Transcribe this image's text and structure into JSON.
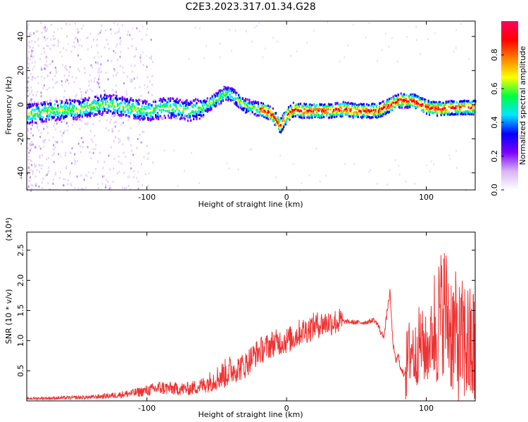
{
  "title": "C2E3.2023.317.01.34.G28",
  "chart_data": [
    {
      "type": "heatmap",
      "xlabel": "Height of straight line (km)",
      "ylabel": "Frequency (Hz)",
      "xlim": [
        -186,
        135
      ],
      "ylim": [
        -50,
        49
      ],
      "x_ticks": [
        -100,
        0,
        100
      ],
      "y_ticks": [
        -40,
        -20,
        0,
        20,
        40
      ],
      "colorbar": {
        "label": "Normalized spectral amplitude",
        "range": [
          0.0,
          1.0
        ],
        "ticks": [
          "0.0",
          "0.2",
          "0.4",
          "0.6",
          "0.8"
        ],
        "colormap": [
          "#ffffff",
          "#d8b4f5",
          "#7b00ff",
          "#0000ff",
          "#00e5ff",
          "#00ff40",
          "#ffff00",
          "#ff8000",
          "#ff0000",
          "#ff0060"
        ]
      },
      "ridge": {
        "x": [
          -186,
          -170,
          -150,
          -130,
          -115,
          -100,
          -85,
          -70,
          -60,
          -50,
          -45,
          -40,
          -35,
          -30,
          -25,
          -20,
          -15,
          -10,
          -5,
          -2,
          0,
          5,
          10,
          20,
          30,
          40,
          50,
          60,
          65,
          70,
          80,
          90,
          95,
          100,
          110,
          120,
          135
        ],
        "y": [
          -5,
          -3,
          -2,
          1,
          -1,
          -3,
          -1,
          -3,
          -1,
          4,
          7,
          7,
          3,
          0,
          -1,
          -2,
          -3,
          -6,
          -12,
          -8,
          -5,
          -2,
          -3,
          -3,
          -3,
          -2,
          -3,
          -3,
          -3,
          -1,
          3,
          3,
          1,
          -1,
          -2,
          -1,
          -1
        ]
      }
    },
    {
      "type": "line",
      "xlabel": "Height of straight line (km)",
      "ylabel": "SNR (10 * v/v)",
      "y_multiplier": "(x10⁴)",
      "xlim": [
        -186,
        135
      ],
      "ylim": [
        0,
        2.8
      ],
      "x_ticks": [
        -100,
        0,
        100
      ],
      "y_ticks": [
        "0.5",
        "1.0",
        "1.5",
        "2.0",
        "2.5"
      ],
      "series": [
        {
          "color": "#ee3333",
          "x": [
            -186,
            -160,
            -140,
            -120,
            -110,
            -100,
            -90,
            -80,
            -70,
            -60,
            -50,
            -40,
            -30,
            -25,
            -20,
            -15,
            -10,
            -5,
            0,
            5,
            10,
            15,
            20,
            30,
            40,
            50,
            55,
            60,
            62,
            65,
            68,
            70,
            72,
            74,
            76,
            78,
            80,
            82,
            84,
            86,
            88,
            90,
            92,
            95,
            98,
            100,
            103,
            106,
            110,
            113,
            116,
            120,
            124,
            128,
            132,
            135
          ],
          "y": [
            0.04,
            0.05,
            0.06,
            0.1,
            0.13,
            0.17,
            0.22,
            0.2,
            0.2,
            0.26,
            0.38,
            0.5,
            0.58,
            0.72,
            0.82,
            0.88,
            0.95,
            0.98,
            1.0,
            1.05,
            1.15,
            1.18,
            1.25,
            1.3,
            1.32,
            1.3,
            1.3,
            1.32,
            1.35,
            1.28,
            1.1,
            1.1,
            1.5,
            1.8,
            1.0,
            0.65,
            0.75,
            0.5,
            0.45,
            0.6,
            0.8,
            0.9,
            0.7,
            1.0,
            0.9,
            0.8,
            1.0,
            1.2,
            1.4,
            1.6,
            1.3,
            1.1,
            0.9,
            1.0,
            0.8,
            0.9
          ]
        }
      ]
    }
  ]
}
